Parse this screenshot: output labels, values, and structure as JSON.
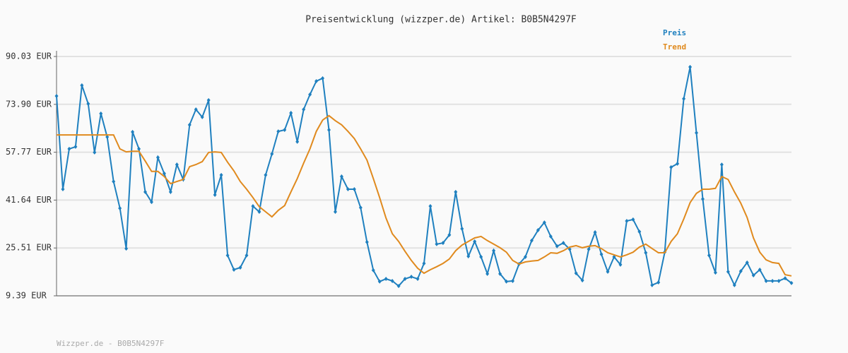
{
  "chart_data": {
    "type": "line",
    "title": "Preisentwicklung (wizzper.de) Artikel: B0B5N4297F",
    "footer": "Wizzper.de - B0B5N4297F",
    "ylim": [
      9.39,
      90.03
    ],
    "yticks": [
      {
        "value": 9.39,
        "label": "9.39 EUR"
      },
      {
        "value": 25.51,
        "label": "25.51 EUR"
      },
      {
        "value": 41.64,
        "label": "41.64 EUR"
      },
      {
        "value": 57.77,
        "label": "57.77 EUR"
      },
      {
        "value": 73.9,
        "label": "73.90 EUR"
      },
      {
        "value": 90.03,
        "label": "90.03 EUR"
      }
    ],
    "grid": true,
    "series": [
      {
        "name": "Preis",
        "color": "#1f80bf",
        "markers": true,
        "values": [
          76.7,
          45.3,
          58.9,
          59.6,
          80.3,
          74.1,
          57.7,
          70.8,
          62.9,
          47.9,
          38.9,
          25.3,
          64.6,
          58.9,
          44.4,
          41.0,
          56.0,
          50.6,
          44.4,
          53.6,
          48.6,
          67.0,
          72.2,
          69.6,
          75.3,
          43.4,
          50.1,
          23.0,
          18.2,
          18.9,
          23.0,
          39.6,
          37.7,
          50.1,
          57.2,
          64.8,
          65.3,
          71.0,
          61.3,
          72.2,
          77.2,
          81.7,
          82.7,
          65.3,
          37.7,
          49.6,
          45.3,
          45.3,
          39.1,
          27.5,
          18.0,
          14.2,
          15.1,
          14.4,
          12.7,
          15.1,
          15.8,
          15.1,
          20.3,
          39.6,
          26.8,
          27.2,
          29.9,
          44.4,
          32.0,
          22.7,
          27.7,
          22.5,
          16.8,
          24.6,
          16.8,
          14.2,
          14.4,
          20.1,
          22.5,
          28.0,
          31.5,
          34.1,
          29.4,
          26.1,
          27.2,
          25.1,
          17.0,
          14.6,
          25.1,
          30.8,
          23.4,
          17.5,
          22.5,
          19.9,
          34.6,
          35.1,
          31.0,
          23.9,
          13.0,
          13.9,
          24.1,
          52.7,
          53.9,
          75.8,
          86.5,
          64.3,
          42.0,
          23.0,
          17.2,
          53.6,
          17.5,
          13.0,
          17.7,
          20.6,
          16.3,
          18.2,
          14.4,
          14.4,
          14.4,
          15.3,
          13.7
        ]
      },
      {
        "name": "Trend",
        "color": "#e08a1e",
        "markers": false,
        "values": [
          63.6,
          63.6,
          63.6,
          63.6,
          63.6,
          63.6,
          63.6,
          63.6,
          63.6,
          63.6,
          58.9,
          57.9,
          58.1,
          58.1,
          54.8,
          51.3,
          51.3,
          49.6,
          47.2,
          47.9,
          48.6,
          52.9,
          53.6,
          54.6,
          57.7,
          57.9,
          57.7,
          54.4,
          51.5,
          47.9,
          45.3,
          42.5,
          39.4,
          37.7,
          36.0,
          38.2,
          39.8,
          44.4,
          48.9,
          54.1,
          58.9,
          64.8,
          68.6,
          70.1,
          68.4,
          67.0,
          64.8,
          62.4,
          58.9,
          55.1,
          48.9,
          42.5,
          35.6,
          30.3,
          27.7,
          24.4,
          21.3,
          18.7,
          17.0,
          18.2,
          19.2,
          20.3,
          21.8,
          24.6,
          26.5,
          27.7,
          28.9,
          29.4,
          28.0,
          26.8,
          25.6,
          24.1,
          21.3,
          20.1,
          20.8,
          21.1,
          21.3,
          22.5,
          23.9,
          23.7,
          24.6,
          25.8,
          26.3,
          25.6,
          26.1,
          26.3,
          25.3,
          23.9,
          23.2,
          22.5,
          23.2,
          24.1,
          25.8,
          26.8,
          25.3,
          23.9,
          23.9,
          27.7,
          30.3,
          35.3,
          40.8,
          43.9,
          45.3,
          45.3,
          45.6,
          49.6,
          48.6,
          44.4,
          40.6,
          35.8,
          28.9,
          24.1,
          21.5,
          20.6,
          20.3,
          16.5,
          16.1
        ]
      }
    ]
  }
}
